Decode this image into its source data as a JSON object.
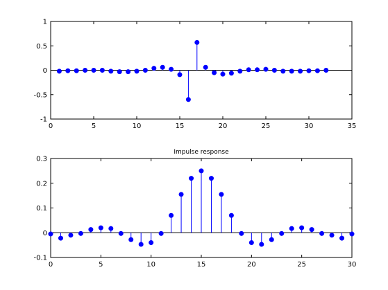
{
  "chart_data": [
    {
      "type": "stem",
      "title": "",
      "xlabel": "",
      "ylabel": "",
      "xlim": [
        0,
        35
      ],
      "ylim": [
        -1,
        1
      ],
      "xticks": [
        0,
        5,
        10,
        15,
        20,
        25,
        30,
        35
      ],
      "yticks": [
        -1,
        -0.5,
        0,
        0.5,
        1
      ],
      "xtick_labels": [
        "0",
        "5",
        "10",
        "15",
        "20",
        "25",
        "30",
        "35"
      ],
      "ytick_labels": [
        "-1",
        "-0.5",
        "0",
        "0.5",
        "1"
      ],
      "grid": false,
      "baseline": 0,
      "x": [
        1,
        2,
        3,
        4,
        5,
        6,
        7,
        8,
        9,
        10,
        11,
        12,
        13,
        14,
        15,
        16,
        17,
        18,
        19,
        20,
        21,
        22,
        23,
        24,
        25,
        26,
        27,
        28,
        29,
        30,
        31,
        32
      ],
      "values": [
        -0.02,
        -0.01,
        -0.01,
        0.0,
        0.0,
        0.0,
        -0.02,
        -0.03,
        -0.03,
        -0.02,
        0.0,
        0.04,
        0.06,
        0.02,
        -0.09,
        -0.6,
        0.57,
        0.06,
        -0.05,
        -0.08,
        -0.06,
        -0.02,
        0.01,
        0.01,
        0.02,
        0.0,
        -0.02,
        -0.02,
        -0.02,
        -0.01,
        -0.01,
        0.0
      ]
    },
    {
      "type": "stem",
      "title": "Impulse response",
      "xlabel": "",
      "ylabel": "",
      "xlim": [
        0,
        30
      ],
      "ylim": [
        -0.1,
        0.3
      ],
      "xticks": [
        0,
        5,
        10,
        15,
        20,
        25,
        30
      ],
      "yticks": [
        -0.1,
        0,
        0.1,
        0.2,
        0.3
      ],
      "xtick_labels": [
        "0",
        "5",
        "10",
        "15",
        "20",
        "25",
        "30"
      ],
      "ytick_labels": [
        "-0.1",
        "0",
        "0.1",
        "0.2",
        "0.3"
      ],
      "grid": false,
      "baseline": 0,
      "x": [
        0,
        1,
        2,
        3,
        4,
        5,
        6,
        7,
        8,
        9,
        10,
        11,
        12,
        13,
        14,
        15,
        16,
        17,
        18,
        19,
        20,
        21,
        22,
        23,
        24,
        25,
        26,
        27,
        28,
        29,
        30
      ],
      "values": [
        -0.005,
        -0.022,
        -0.01,
        -0.003,
        0.013,
        0.02,
        0.017,
        -0.003,
        -0.028,
        -0.047,
        -0.04,
        -0.003,
        0.07,
        0.155,
        0.22,
        0.25,
        0.22,
        0.155,
        0.07,
        -0.003,
        -0.04,
        -0.047,
        -0.028,
        -0.003,
        0.017,
        0.02,
        0.013,
        -0.003,
        -0.01,
        -0.022,
        -0.005
      ]
    }
  ],
  "colors": {
    "stem": "#0000ff",
    "marker": "#0000ff",
    "axes": "#000000",
    "background": "#ffffff"
  }
}
